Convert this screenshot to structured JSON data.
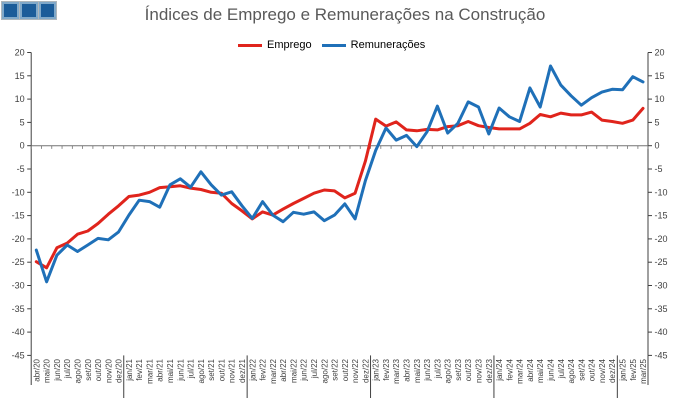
{
  "logo": {
    "icon": "grid-logo-icon",
    "strip_color": "#AEB6BB",
    "square_fill": "#1B5C99",
    "square_border": "#7FA8C9"
  },
  "axis": {
    "tick_color": "#404040",
    "axis_color": "#404040",
    "zero_line_color": "#737373"
  },
  "chart_data": {
    "type": "line",
    "title": "Índices de Emprego e Remunerações na Construção",
    "title_color": "#595959",
    "legend_position": "top",
    "grid": false,
    "x_label_rotation": -90,
    "ylim": [
      -45,
      20
    ],
    "y_ticks": [
      20,
      15,
      10,
      5,
      0,
      -5,
      -10,
      -15,
      -20,
      -25,
      -30,
      -35,
      -40,
      -45
    ],
    "categories": [
      "abr/20",
      "mai/20",
      "jun/20",
      "jul/20",
      "ago/20",
      "set/20",
      "out/20",
      "nov/20",
      "dez/20",
      "jan/21",
      "fev/21",
      "mar/21",
      "abr/21",
      "mai/21",
      "jun/21",
      "jul/21",
      "ago/21",
      "set/21",
      "out/21",
      "nov/21",
      "dez/21",
      "jan/22",
      "fev/22",
      "mar/22",
      "abr/22",
      "mai/22",
      "jun/22",
      "jul/22",
      "ago/22",
      "set/22",
      "out/22",
      "nov/22",
      "dez/22",
      "jan/23",
      "fev/23",
      "mar/23",
      "abr/23",
      "mai/23",
      "jun/23",
      "jul/23",
      "ago/23",
      "set/23",
      "out/23",
      "nov/23",
      "dez/23",
      "jan/24",
      "fev/24",
      "mar/24",
      "abr/24",
      "mai/24",
      "jun/24",
      "jul/24",
      "ago/24",
      "set/24",
      "out/24",
      "nov/24",
      "dez/24",
      "jan/25",
      "fev/25",
      "mar/25"
    ],
    "year_separators_before": [
      "jan/21",
      "jan/22",
      "jan/23",
      "jan/24",
      "jan/25"
    ],
    "series": [
      {
        "name": "Emprego",
        "color": "#E0241C",
        "values": [
          -24.9,
          -26.2,
          -21.9,
          -20.9,
          -19.0,
          -18.3,
          -16.7,
          -14.7,
          -12.9,
          -10.9,
          -10.6,
          -10.0,
          -9.0,
          -8.8,
          -8.6,
          -9.1,
          -9.4,
          -10.0,
          -10.2,
          -12.4,
          -14.0,
          -15.7,
          -14.2,
          -14.9,
          -13.6,
          -12.4,
          -11.3,
          -10.2,
          -9.5,
          -9.7,
          -11.2,
          -10.2,
          -3.3,
          5.7,
          4.2,
          5.1,
          3.4,
          3.2,
          3.5,
          3.4,
          4.1,
          4.3,
          5.2,
          4.3,
          3.9,
          3.6,
          3.6,
          3.6,
          4.8,
          6.7,
          6.2,
          7.0,
          6.6,
          6.6,
          7.2,
          5.5,
          5.2,
          4.8,
          5.5,
          8.0
        ]
      },
      {
        "name": "Remunerações",
        "color": "#1F70B8",
        "values": [
          -22.4,
          -29.2,
          -23.5,
          -21.3,
          -22.7,
          -21.3,
          -19.9,
          -20.2,
          -18.5,
          -14.9,
          -11.7,
          -12.0,
          -13.2,
          -8.4,
          -7.1,
          -8.9,
          -5.6,
          -8.4,
          -10.6,
          -9.9,
          -12.9,
          -15.6,
          -12.0,
          -14.9,
          -16.3,
          -14.3,
          -14.7,
          -14.2,
          -16.1,
          -14.9,
          -12.5,
          -15.7,
          -7.5,
          -1.0,
          3.8,
          1.2,
          2.2,
          -0.2,
          3.0,
          8.5,
          2.7,
          4.8,
          9.4,
          8.3,
          2.5,
          8.1,
          6.2,
          5.2,
          12.4,
          8.3,
          17.1,
          13.0,
          10.7,
          8.7,
          10.3,
          11.5,
          12.1,
          12.0,
          14.8,
          13.7
        ]
      }
    ]
  }
}
